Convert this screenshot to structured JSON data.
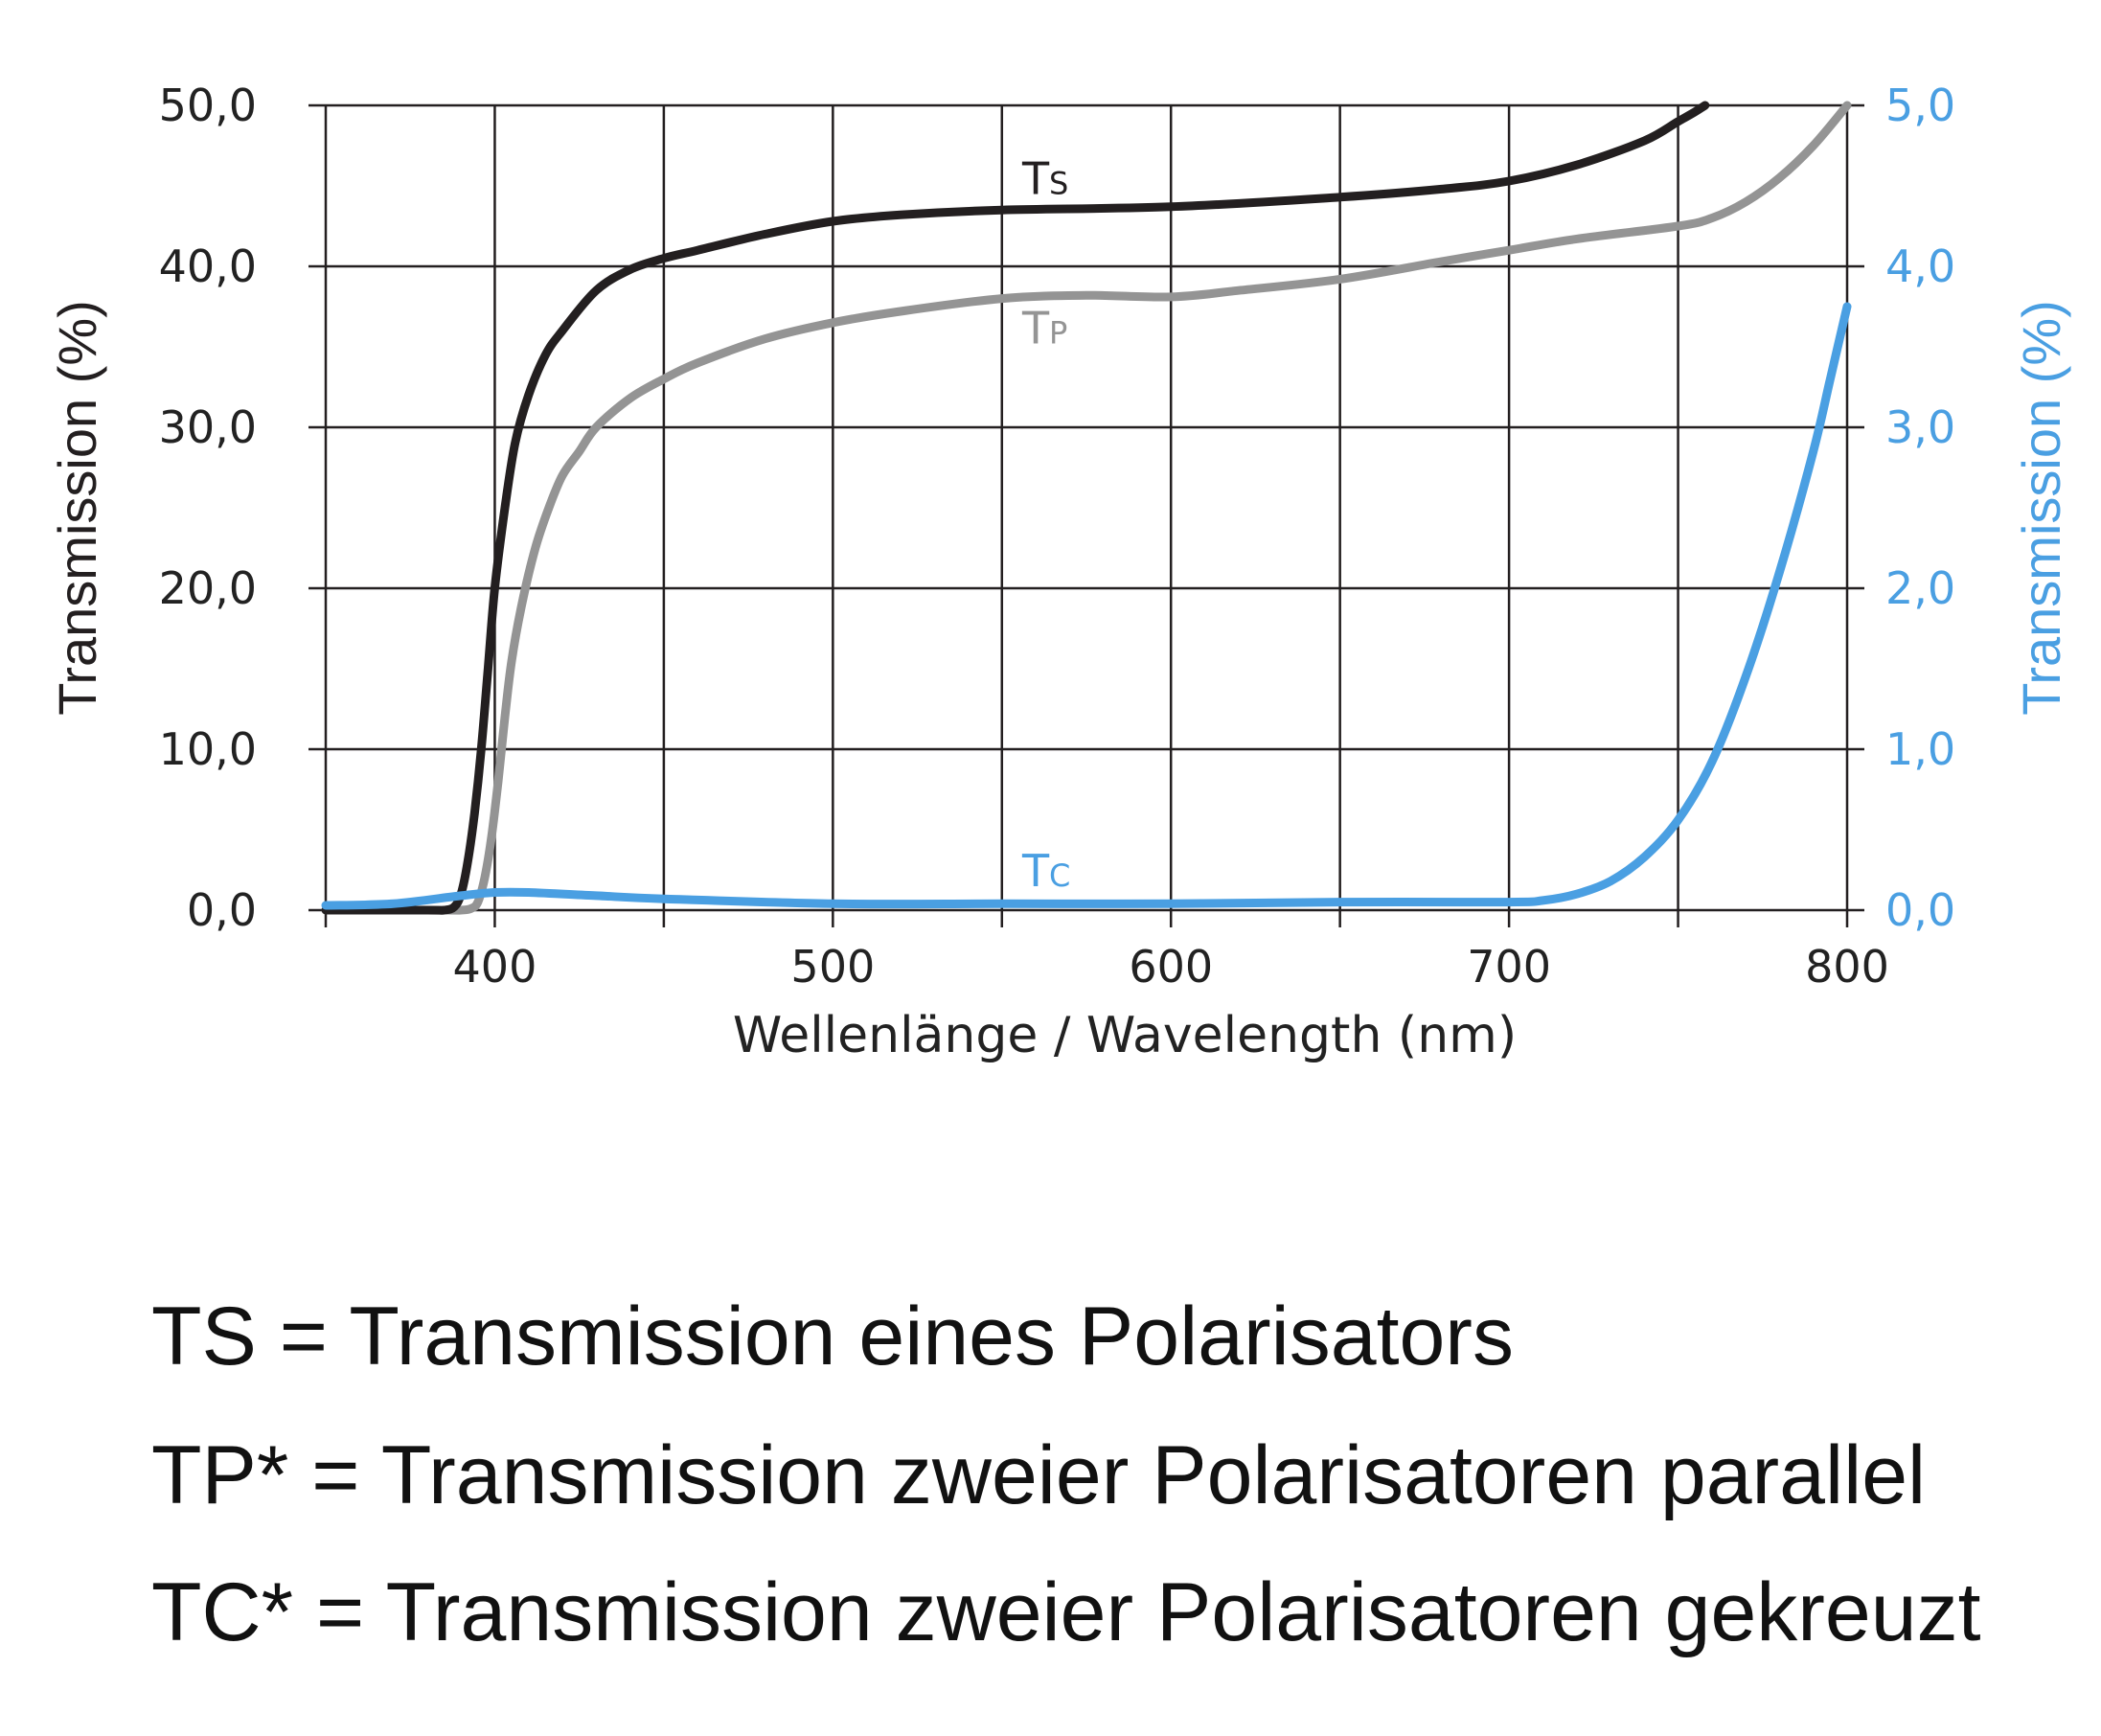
{
  "chart_data": {
    "type": "line",
    "xlabel": "Wellenlänge / Wavelength (nm)",
    "ylabel_left": "Transmission (%)",
    "ylabel_right": "Transmission (%)",
    "xlim": [
      350,
      800
    ],
    "ylim_left": [
      0,
      50
    ],
    "ylim_right": [
      0,
      5
    ],
    "x_ticks": [
      400,
      500,
      600,
      700,
      800
    ],
    "x_tick_labels": [
      "400",
      "500",
      "600",
      "700",
      "800"
    ],
    "x_gridlines": [
      350,
      400,
      450,
      500,
      550,
      600,
      650,
      700,
      750,
      800
    ],
    "y_left_ticks": [
      0,
      10,
      20,
      30,
      40,
      50
    ],
    "y_left_tick_labels": [
      "0,0",
      "10,0",
      "20,0",
      "30,0",
      "40,0",
      "50,0"
    ],
    "y_right_ticks": [
      0,
      1,
      2,
      3,
      4,
      5
    ],
    "y_right_tick_labels": [
      "0,0",
      "1,0",
      "2,0",
      "3,0",
      "4,0",
      "5,0"
    ],
    "grid": true,
    "series": [
      {
        "name": "Ts",
        "label_main": "T",
        "label_sub": "S",
        "axis": "left",
        "color": "#231f20",
        "label_at": [
          556,
          44.5
        ],
        "x": [
          350,
          380,
          385,
          388,
          390,
          392,
          394,
          396,
          398,
          400,
          403,
          406,
          410,
          415,
          420,
          430,
          440,
          450,
          460,
          480,
          500,
          520,
          550,
          600,
          650,
          680,
          700,
          720,
          740,
          750,
          755,
          758
        ],
        "y": [
          0,
          0,
          0,
          0.2,
          1,
          3,
          6,
          10,
          15,
          20,
          25,
          29,
          32,
          34.5,
          36,
          38.5,
          39.8,
          40.5,
          41,
          42,
          42.8,
          43.2,
          43.5,
          43.7,
          44.3,
          44.8,
          45.3,
          46.3,
          47.8,
          49,
          49.6,
          50
        ]
      },
      {
        "name": "Tp",
        "label_main": "T",
        "label_sub": "P",
        "axis": "left",
        "color": "#949494",
        "label_at": [
          556,
          35.2
        ],
        "x": [
          350,
          385,
          390,
          393,
          395,
          397,
          399,
          401,
          403,
          405,
          408,
          412,
          416,
          420,
          425,
          430,
          440,
          450,
          460,
          480,
          500,
          520,
          550,
          575,
          600,
          620,
          650,
          680,
          700,
          720,
          750,
          760,
          770,
          780,
          790,
          800
        ],
        "y": [
          0,
          0,
          0,
          0.1,
          0.5,
          2,
          4.5,
          8,
          12,
          15.5,
          19,
          22.5,
          25,
          27,
          28.5,
          30,
          31.8,
          33,
          34,
          35.5,
          36.5,
          37.2,
          38,
          38.2,
          38.1,
          38.5,
          39.2,
          40.3,
          41,
          41.7,
          42.5,
          43,
          44,
          45.5,
          47.5,
          50
        ]
      },
      {
        "name": "Tc",
        "label_main": "T",
        "label_sub": "C",
        "axis": "right",
        "color": "#4a9fe2",
        "label_at": [
          556,
          0.15
        ],
        "x": [
          350,
          370,
          390,
          400,
          410,
          430,
          450,
          500,
          550,
          600,
          650,
          700,
          710,
          720,
          730,
          740,
          750,
          760,
          770,
          780,
          790,
          795,
          800
        ],
        "y": [
          0.03,
          0.04,
          0.09,
          0.11,
          0.11,
          0.09,
          0.07,
          0.04,
          0.04,
          0.04,
          0.05,
          0.05,
          0.06,
          0.1,
          0.18,
          0.33,
          0.56,
          0.92,
          1.45,
          2.1,
          2.85,
          3.3,
          3.75
        ]
      }
    ]
  },
  "legend_notes": [
    "TS = Transmission eines Polarisators",
    "TP* = Transmission zweier Polarisatoren parallel",
    "TC* = Transmission zweier Polarisatoren gekreuzt"
  ],
  "colors": {
    "grid": "#231f20",
    "left_axis_text": "#231f20",
    "right_axis_text": "#4a9fe2"
  }
}
